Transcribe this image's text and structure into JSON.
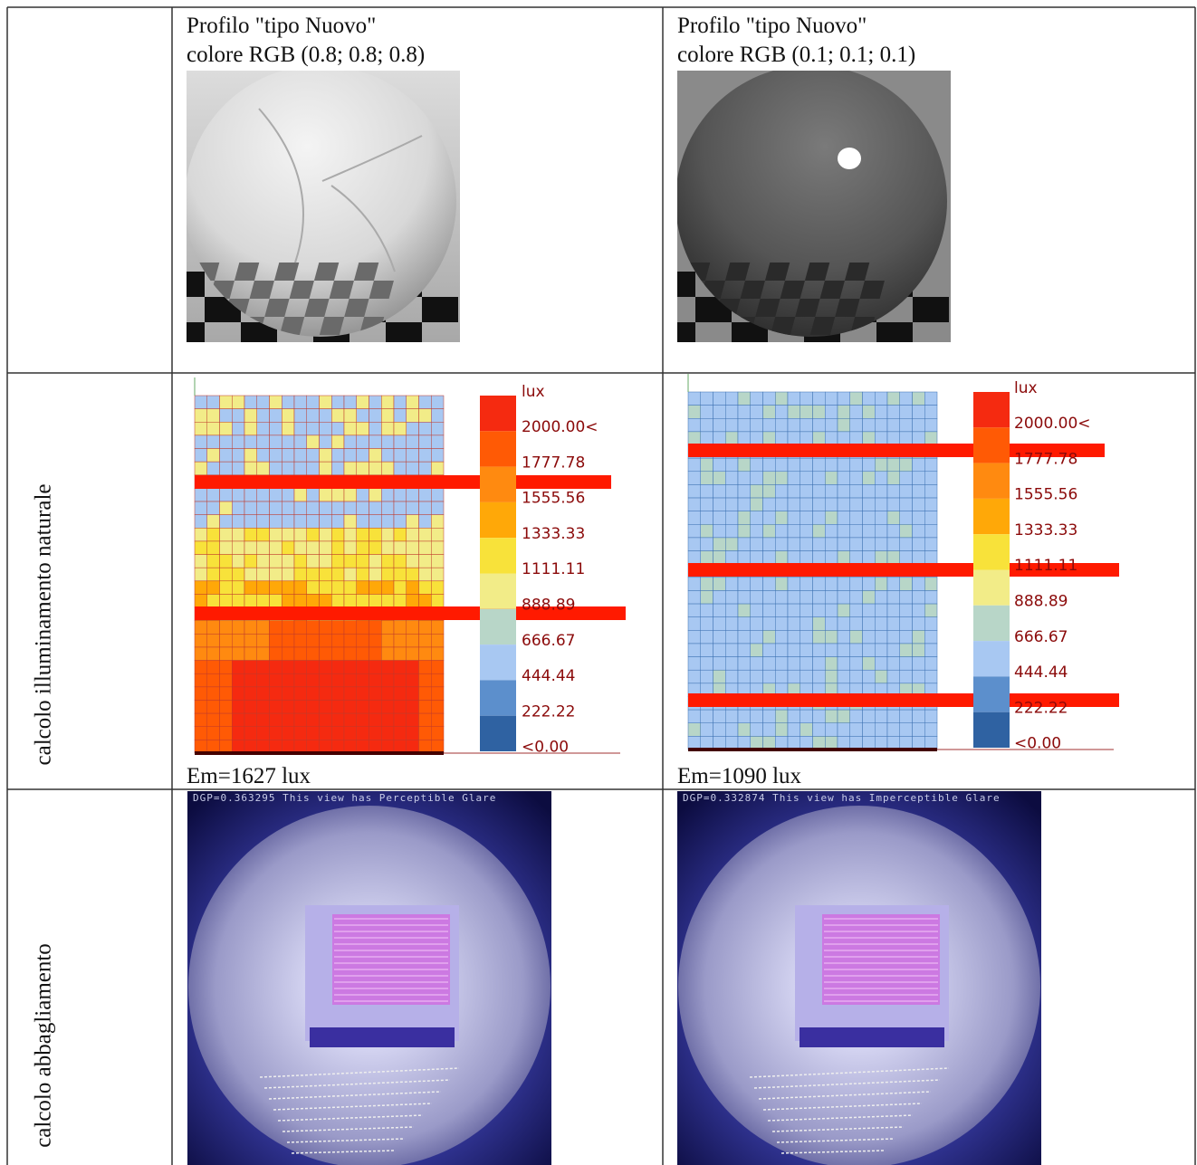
{
  "table": {
    "row_labels": [
      "calcolo illuminamento naturale",
      "calcolo abbagliamento"
    ],
    "columns": [
      {
        "profile": "Profilo \"tipo Nuovo\"",
        "color": "colore RGB (0.8; 0.8; 0.8)",
        "legend_unit": "lux",
        "legend_labels": [
          "2000.00<",
          "1777.78",
          "1555.56",
          "1333.33",
          "1111.11",
          "888.89",
          "666.67",
          "444.44",
          "222.22",
          "<0.00"
        ],
        "em": "Em=1627 lux",
        "dgp": "DGP=0.363295 This view has Perceptible Glare"
      },
      {
        "profile": "Profilo \"tipo Nuovo\"",
        "color": "colore RGB (0.1; 0.1; 0.1)",
        "legend_unit": "lux",
        "legend_labels": [
          "2000.00<",
          "1777.78",
          "1555.56",
          "1333.33",
          "1111.11",
          "888.89",
          "666.67",
          "444.44",
          "222.22",
          "<0.00"
        ],
        "em": "Em=1090 lux",
        "dgp": "DGP=0.332874 This view has Imperceptible Glare"
      }
    ]
  }
}
